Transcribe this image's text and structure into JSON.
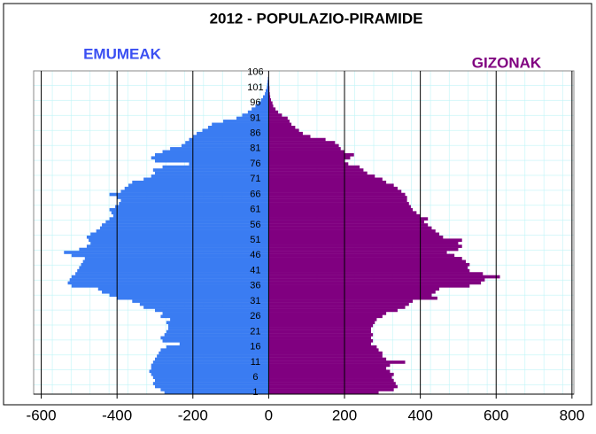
{
  "chart_data": {
    "type": "pyramid",
    "title": "2012 - POPULAZIO-PIRAMIDE",
    "categories": [
      "1",
      null,
      null,
      null,
      null,
      "6",
      null,
      null,
      null,
      null,
      "11",
      null,
      null,
      null,
      null,
      "16",
      null,
      null,
      null,
      null,
      "21",
      null,
      null,
      null,
      null,
      "26",
      null,
      null,
      null,
      null,
      "31",
      null,
      null,
      null,
      null,
      "36",
      null,
      null,
      null,
      null,
      "41",
      null,
      null,
      null,
      null,
      "46",
      null,
      null,
      null,
      null,
      "51",
      null,
      null,
      null,
      null,
      "56",
      null,
      null,
      null,
      null,
      "61",
      null,
      null,
      null,
      null,
      "66",
      null,
      null,
      null,
      null,
      "71",
      null,
      null,
      null,
      null,
      "76",
      null,
      null,
      null,
      null,
      "81",
      null,
      null,
      null,
      null,
      "86",
      null,
      null,
      null,
      null,
      "91",
      null,
      null,
      null,
      null,
      "96",
      null,
      null,
      null,
      null,
      "101",
      null,
      null,
      null,
      null,
      "106"
    ],
    "series": [
      {
        "name": "EMUMEAK",
        "color": "#3a7cf2",
        "values": [
          -275,
          -285,
          -300,
          -305,
          -300,
          -305,
          -310,
          -315,
          -310,
          -310,
          -305,
          -300,
          -295,
          -290,
          -285,
          -270,
          -235,
          -280,
          -285,
          -275,
          -270,
          -265,
          -265,
          -270,
          -260,
          -285,
          -280,
          -300,
          -330,
          -340,
          -360,
          -400,
          -420,
          -440,
          -450,
          -520,
          -530,
          -525,
          -520,
          -510,
          -505,
          -500,
          -495,
          -490,
          -485,
          -520,
          -540,
          -500,
          -480,
          -470,
          -475,
          -480,
          -470,
          -455,
          -445,
          -440,
          -430,
          -420,
          -410,
          -415,
          -420,
          -405,
          -395,
          -390,
          -400,
          -420,
          -390,
          -380,
          -370,
          -360,
          -330,
          -310,
          -300,
          -305,
          -280,
          -210,
          -300,
          -310,
          -300,
          -280,
          -260,
          -230,
          -220,
          -210,
          -200,
          -190,
          -175,
          -160,
          -150,
          -120,
          -85,
          -70,
          -55,
          -45,
          -35,
          -28,
          -20,
          -15,
          -10,
          -8,
          -5,
          -4,
          -3,
          -2,
          -1,
          -1
        ]
      },
      {
        "name": "GIZONAK",
        "color": "#800080",
        "values": [
          290,
          330,
          340,
          335,
          330,
          325,
          330,
          320,
          310,
          320,
          360,
          310,
          300,
          300,
          290,
          285,
          270,
          275,
          270,
          275,
          270,
          270,
          275,
          280,
          285,
          300,
          310,
          340,
          360,
          370,
          380,
          445,
          430,
          440,
          450,
          530,
          560,
          570,
          610,
          565,
          530,
          525,
          530,
          520,
          510,
          490,
          470,
          500,
          510,
          500,
          510,
          460,
          450,
          440,
          430,
          420,
          410,
          420,
          400,
          390,
          380,
          375,
          370,
          365,
          365,
          360,
          350,
          340,
          330,
          310,
          300,
          280,
          260,
          250,
          240,
          210,
          200,
          215,
          225,
          200,
          190,
          185,
          175,
          150,
          110,
          90,
          80,
          70,
          60,
          55,
          50,
          35,
          25,
          18,
          12,
          10,
          6,
          4,
          3,
          2,
          2,
          1,
          1,
          0,
          0,
          0
        ]
      }
    ],
    "xlim": [
      -620,
      805
    ],
    "xticks": [
      -600,
      -400,
      -200,
      0,
      200,
      400,
      600,
      800
    ],
    "grid": true
  }
}
